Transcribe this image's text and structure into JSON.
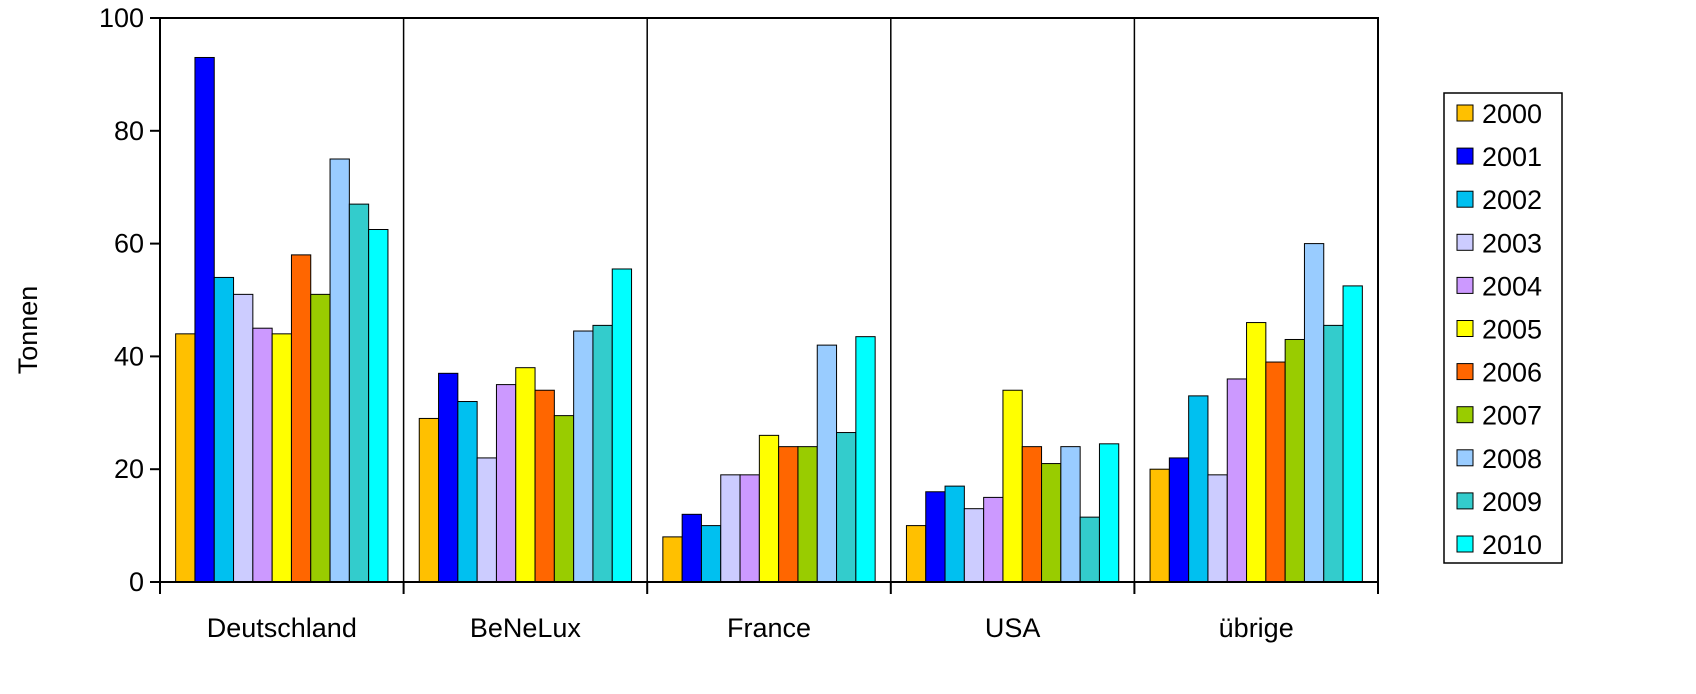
{
  "chart_data": {
    "type": "bar",
    "title": "",
    "xlabel": "",
    "ylabel": "Tonnen",
    "ylim": [
      0,
      100
    ],
    "yticks": [
      0,
      20,
      40,
      60,
      80,
      100
    ],
    "grid": false,
    "legend_position": "right",
    "categories": [
      "Deutschland",
      "BeNeLux",
      "France",
      "USA",
      "übrige"
    ],
    "series": [
      {
        "name": "2000",
        "color": "#FFC000",
        "values": [
          44,
          29,
          8,
          10,
          20
        ]
      },
      {
        "name": "2001",
        "color": "#0000FF",
        "values": [
          93,
          37,
          12,
          16,
          22
        ]
      },
      {
        "name": "2002",
        "color": "#00C0F0",
        "values": [
          54,
          32,
          10,
          17,
          33
        ]
      },
      {
        "name": "2003",
        "color": "#CCCCFF",
        "values": [
          51,
          22,
          19,
          13,
          19
        ]
      },
      {
        "name": "2004",
        "color": "#CC99FF",
        "values": [
          45,
          35,
          19,
          15,
          36
        ]
      },
      {
        "name": "2005",
        "color": "#FFFF00",
        "values": [
          44,
          38,
          26,
          34,
          46
        ]
      },
      {
        "name": "2006",
        "color": "#FF6600",
        "values": [
          58,
          34,
          24,
          24,
          39
        ]
      },
      {
        "name": "2007",
        "color": "#99CC00",
        "values": [
          51,
          29.5,
          24,
          21,
          43
        ]
      },
      {
        "name": "2008",
        "color": "#99CCFF",
        "values": [
          75,
          44.5,
          42,
          24,
          60
        ]
      },
      {
        "name": "2009",
        "color": "#33CCCC",
        "values": [
          67,
          45.5,
          26.5,
          11.5,
          45.5
        ]
      },
      {
        "name": "2010",
        "color": "#00FFFF",
        "values": [
          62.5,
          55.5,
          43.5,
          24.5,
          52.5
        ]
      }
    ]
  }
}
